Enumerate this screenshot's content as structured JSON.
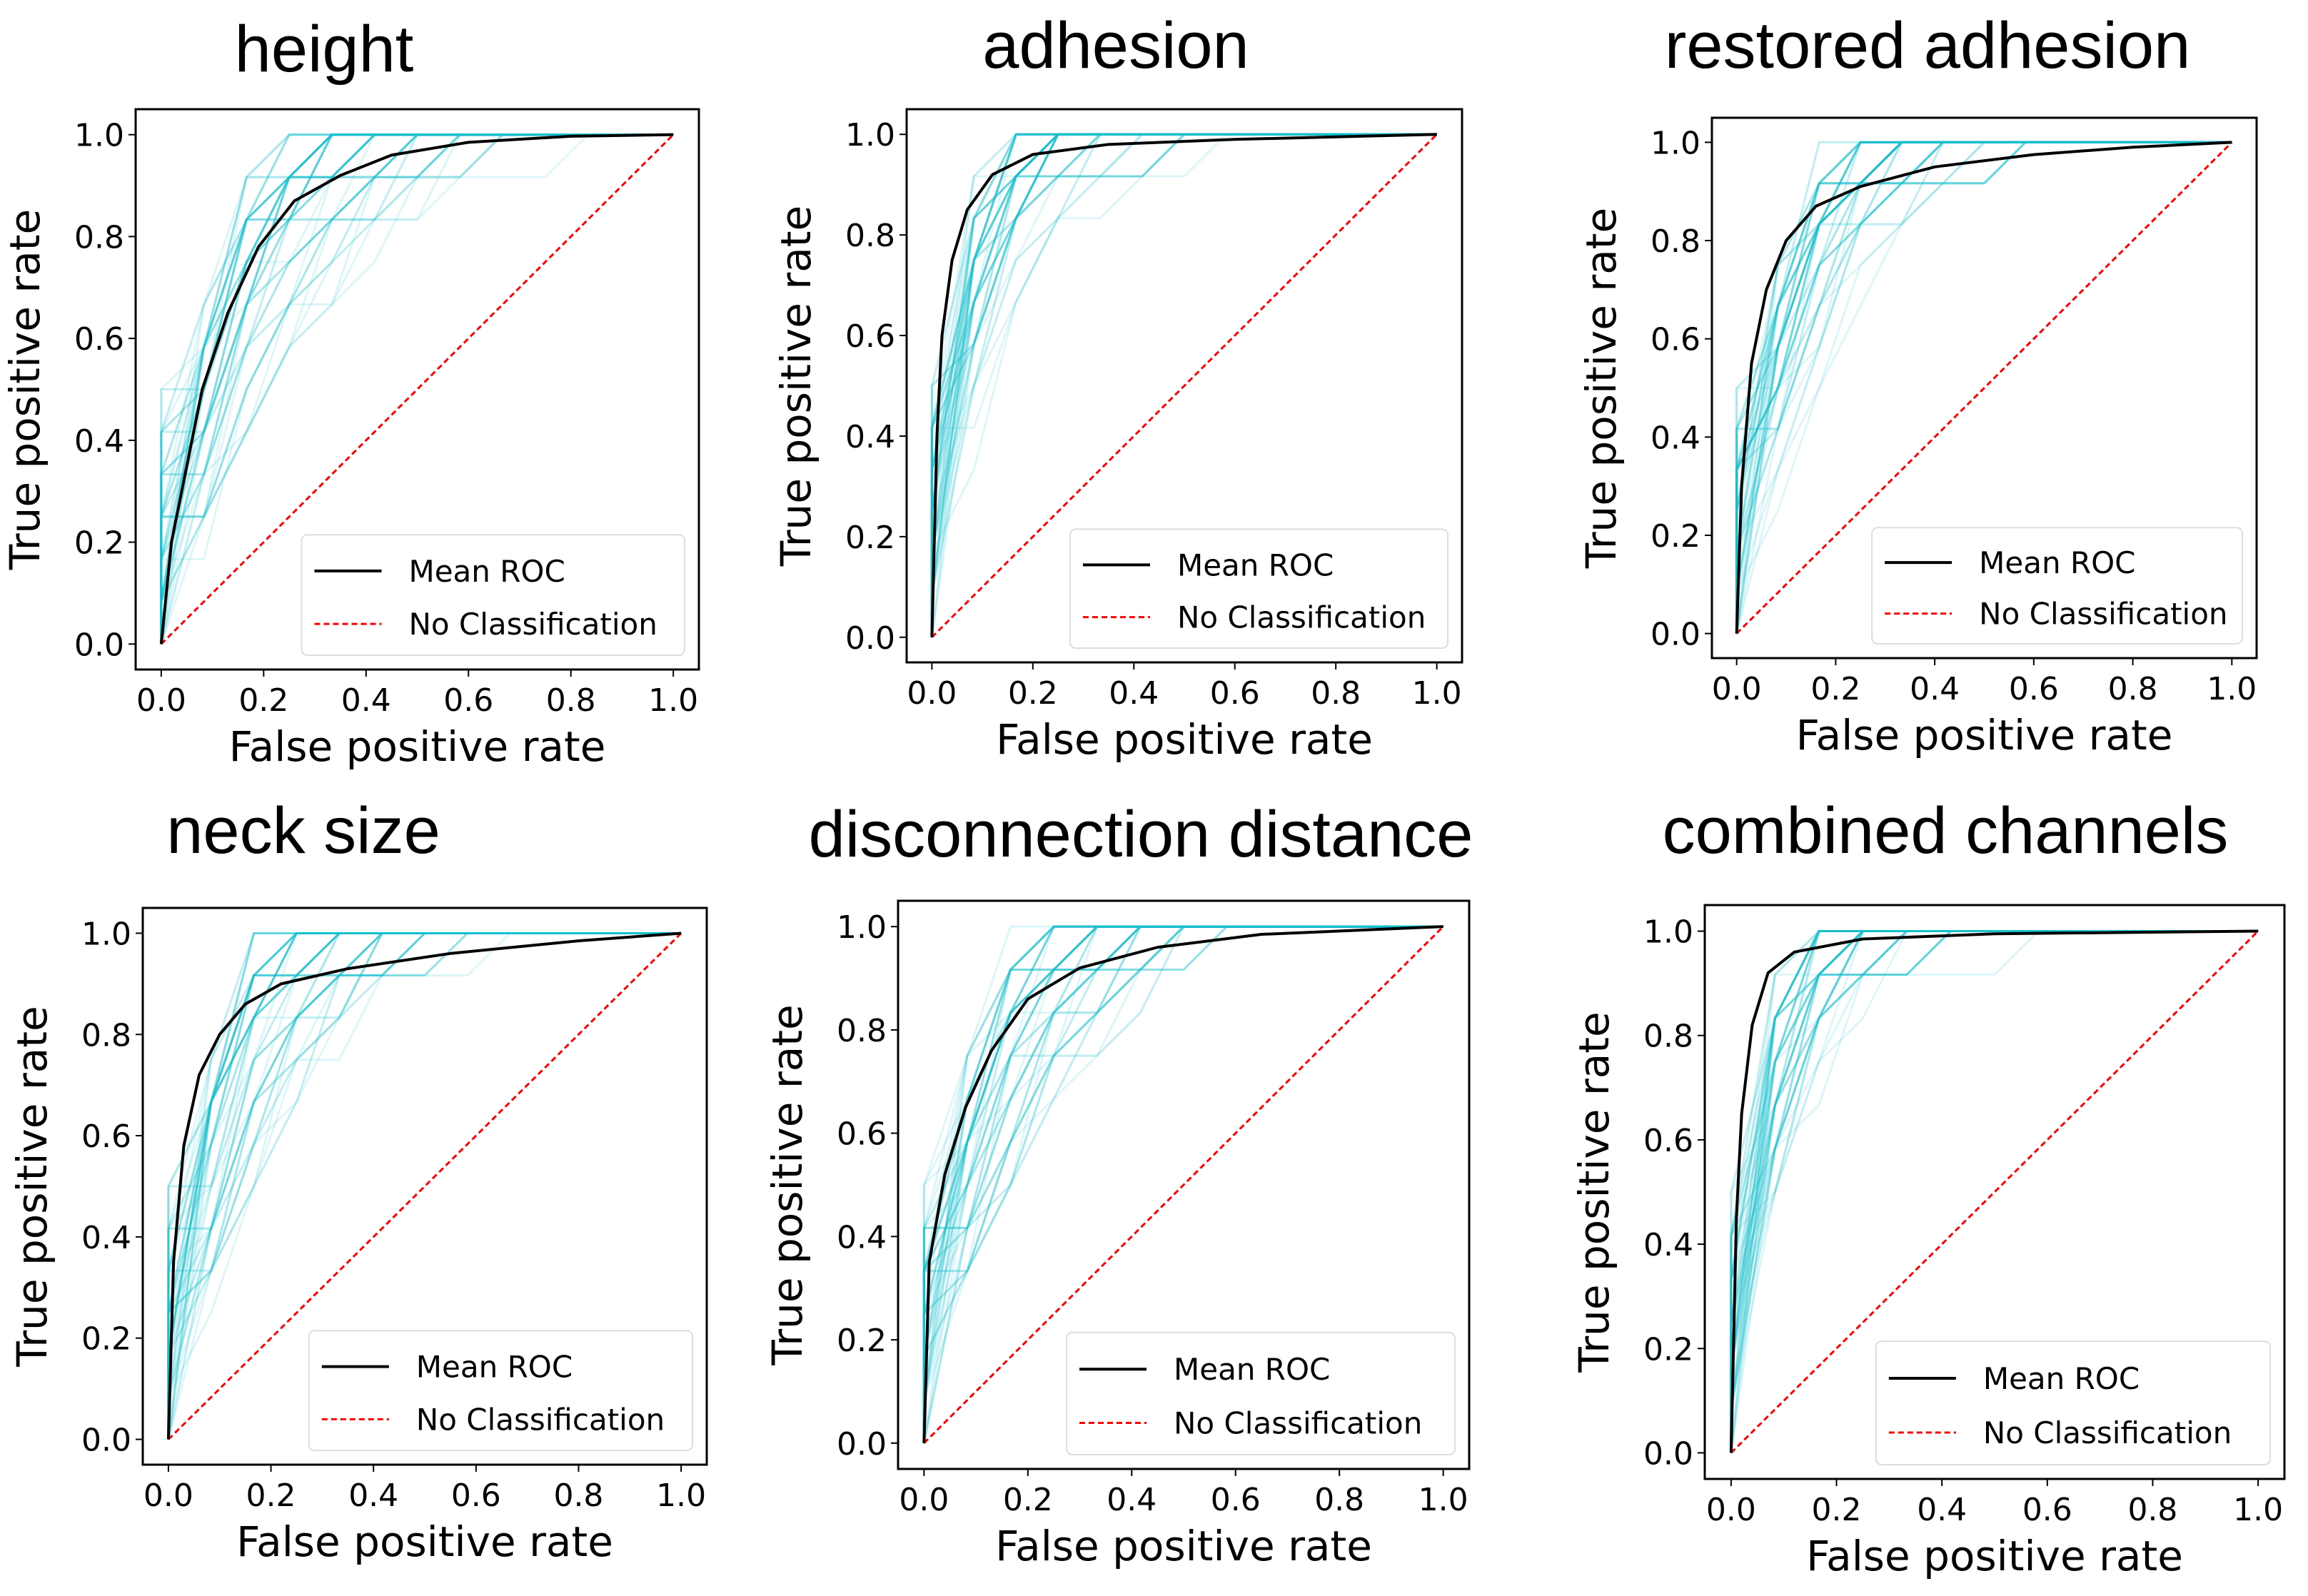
{
  "chart_data": [
    {
      "type": "line",
      "title": "height",
      "xlabel": "False positive rate",
      "ylabel": "True positive rate",
      "xlim": [
        0,
        1
      ],
      "ylim": [
        0,
        1
      ],
      "ticks": [
        "0.0",
        "0.2",
        "0.4",
        "0.6",
        "0.8",
        "1.0"
      ],
      "legend": [
        "Mean ROC",
        "No Classification"
      ],
      "legend_position": "lower-right",
      "series": [
        {
          "name": "Mean ROC",
          "x": [
            0,
            0.02,
            0.05,
            0.08,
            0.13,
            0.19,
            0.26,
            0.35,
            0.45,
            0.6,
            0.8,
            1
          ],
          "y": [
            0,
            0.2,
            0.35,
            0.5,
            0.65,
            0.78,
            0.87,
            0.92,
            0.96,
            0.985,
            0.997,
            1
          ]
        },
        {
          "name": "No Classification",
          "x": [
            0,
            1
          ],
          "y": [
            0,
            1
          ]
        }
      ],
      "fold_curve_strength": 2.2
    },
    {
      "type": "line",
      "title": "adhesion",
      "xlabel": "False positive rate",
      "ylabel": "True positive rate",
      "xlim": [
        0,
        1
      ],
      "ylim": [
        0,
        1
      ],
      "ticks": [
        "0.0",
        "0.2",
        "0.4",
        "0.6",
        "0.8",
        "1.0"
      ],
      "legend": [
        "Mean ROC",
        "No Classification"
      ],
      "legend_position": "lower-right",
      "series": [
        {
          "name": "Mean ROC",
          "x": [
            0,
            0.01,
            0.02,
            0.04,
            0.07,
            0.12,
            0.2,
            0.35,
            0.6,
            1
          ],
          "y": [
            0,
            0.4,
            0.6,
            0.75,
            0.85,
            0.92,
            0.96,
            0.98,
            0.99,
            1
          ]
        },
        {
          "name": "No Classification",
          "x": [
            0,
            1
          ],
          "y": [
            0,
            1
          ]
        }
      ],
      "fold_curve_strength": 4.0
    },
    {
      "type": "line",
      "title": "restored adhesion",
      "xlabel": "False positive rate",
      "ylabel": "True positive rate",
      "xlim": [
        0,
        1
      ],
      "ylim": [
        0,
        1
      ],
      "ticks": [
        "0.0",
        "0.2",
        "0.4",
        "0.6",
        "0.8",
        "1.0"
      ],
      "legend": [
        "Mean ROC",
        "No Classification"
      ],
      "legend_position": "lower-right",
      "series": [
        {
          "name": "Mean ROC",
          "x": [
            0,
            0.01,
            0.03,
            0.06,
            0.1,
            0.16,
            0.25,
            0.4,
            0.6,
            0.8,
            1
          ],
          "y": [
            0,
            0.3,
            0.55,
            0.7,
            0.8,
            0.87,
            0.91,
            0.95,
            0.975,
            0.99,
            1
          ]
        },
        {
          "name": "No Classification",
          "x": [
            0,
            1
          ],
          "y": [
            0,
            1
          ]
        }
      ],
      "fold_curve_strength": 2.8
    },
    {
      "type": "line",
      "title": "neck size",
      "xlabel": "False positive rate",
      "ylabel": "True positive rate",
      "xlim": [
        0,
        1
      ],
      "ylim": [
        0,
        1
      ],
      "ticks": [
        "0.0",
        "0.2",
        "0.4",
        "0.6",
        "0.8",
        "1.0"
      ],
      "legend": [
        "Mean ROC",
        "No Classification"
      ],
      "legend_position": "lower-right",
      "series": [
        {
          "name": "Mean ROC",
          "x": [
            0,
            0.01,
            0.03,
            0.06,
            0.1,
            0.15,
            0.22,
            0.35,
            0.55,
            0.8,
            1
          ],
          "y": [
            0,
            0.35,
            0.58,
            0.72,
            0.8,
            0.86,
            0.9,
            0.93,
            0.96,
            0.985,
            1
          ]
        },
        {
          "name": "No Classification",
          "x": [
            0,
            1
          ],
          "y": [
            0,
            1
          ]
        }
      ],
      "fold_curve_strength": 2.9
    },
    {
      "type": "line",
      "title": "disconnection distance",
      "xlabel": "False positive rate",
      "ylabel": "True positive rate",
      "xlim": [
        0,
        1
      ],
      "ylim": [
        0,
        1
      ],
      "ticks": [
        "0.0",
        "0.2",
        "0.4",
        "0.6",
        "0.8",
        "1.0"
      ],
      "legend": [
        "Mean ROC",
        "No Classification"
      ],
      "legend_position": "lower-right",
      "series": [
        {
          "name": "Mean ROC",
          "x": [
            0,
            0.01,
            0.04,
            0.08,
            0.13,
            0.2,
            0.3,
            0.45,
            0.65,
            1
          ],
          "y": [
            0,
            0.35,
            0.52,
            0.65,
            0.76,
            0.86,
            0.92,
            0.96,
            0.985,
            1
          ]
        },
        {
          "name": "No Classification",
          "x": [
            0,
            1
          ],
          "y": [
            0,
            1
          ]
        }
      ],
      "fold_curve_strength": 2.6
    },
    {
      "type": "line",
      "title": "combined channels",
      "xlabel": "False positive rate",
      "ylabel": "True positive rate",
      "xlim": [
        0,
        1
      ],
      "ylim": [
        0,
        1
      ],
      "ticks": [
        "0.0",
        "0.2",
        "0.4",
        "0.6",
        "0.8",
        "1.0"
      ],
      "legend": [
        "Mean ROC",
        "No Classification"
      ],
      "legend_position": "lower-right",
      "series": [
        {
          "name": "Mean ROC",
          "x": [
            0,
            0.01,
            0.02,
            0.04,
            0.07,
            0.12,
            0.25,
            0.5,
            1
          ],
          "y": [
            0,
            0.45,
            0.65,
            0.82,
            0.92,
            0.96,
            0.985,
            0.995,
            1
          ]
        },
        {
          "name": "No Classification",
          "x": [
            0,
            1
          ],
          "y": [
            0,
            1
          ]
        }
      ],
      "fold_curve_strength": 4.5
    }
  ],
  "colors": {
    "fold": "#17becf",
    "mean": "#000000",
    "chance": "#ff0000"
  }
}
